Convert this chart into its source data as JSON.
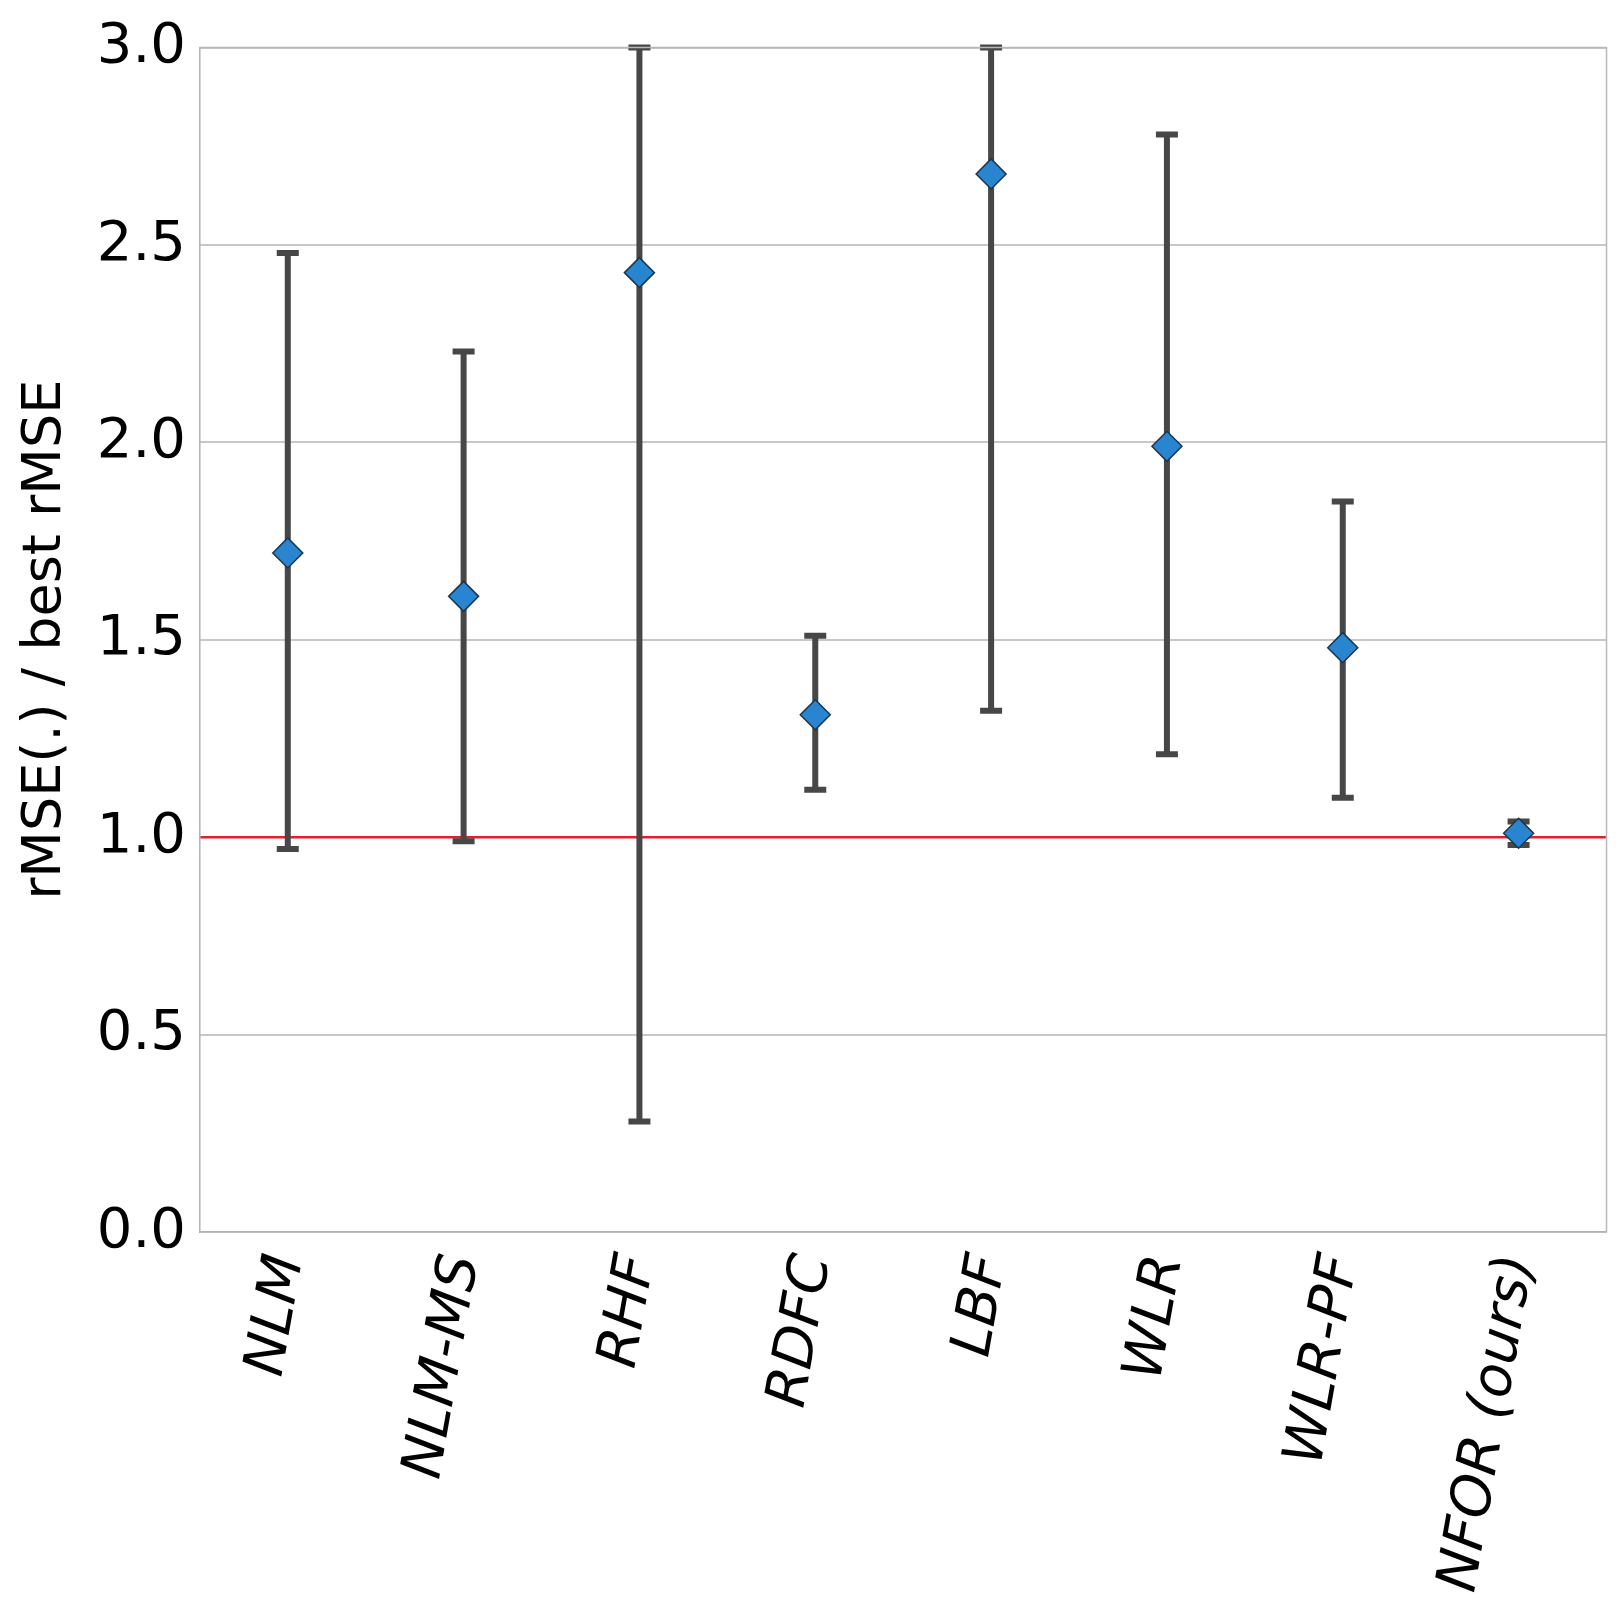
{
  "chart_data": {
    "type": "scatter",
    "ylabel": "rMSE(.) / best rMSE",
    "categories": [
      "NLM",
      "NLM-MS",
      "RHF",
      "RDFC",
      "LBF",
      "WLR",
      "WLR-PF",
      "NFOR (ours)"
    ],
    "values": [
      1.72,
      1.61,
      2.43,
      1.31,
      2.68,
      1.99,
      1.48,
      1.01
    ],
    "errors": [
      [
        0.97,
        2.48
      ],
      [
        0.99,
        2.23
      ],
      [
        0.28,
        3.0
      ],
      [
        1.12,
        1.51
      ],
      [
        1.32,
        3.0
      ],
      [
        1.21,
        2.78
      ],
      [
        1.1,
        1.85
      ],
      [
        0.98,
        1.04
      ]
    ],
    "color": "#2a85d0",
    "marker": "diamond",
    "ylim": [
      0,
      3
    ],
    "yticks": [
      {
        "value": 0,
        "label": "0.0"
      },
      {
        "value": 0.5,
        "label": "0.5"
      },
      {
        "value": 1,
        "label": "1.0"
      },
      {
        "value": 1.5,
        "label": "1.5"
      },
      {
        "value": 2,
        "label": "2.0"
      },
      {
        "value": 2.5,
        "label": "2.5"
      },
      {
        "value": 3,
        "label": "3.0"
      }
    ],
    "grid": "y",
    "ref_lines": [
      {
        "axis": "y",
        "value": 1,
        "color": "#e0202a"
      }
    ]
  }
}
